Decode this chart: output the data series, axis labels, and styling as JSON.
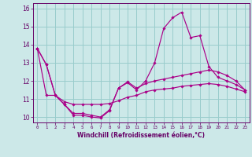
{
  "xlabel": "Windchill (Refroidissement éolien,°C)",
  "background_color": "#cce8e8",
  "grid_color": "#99cccc",
  "line_color": "#aa0088",
  "x_hours": [
    0,
    1,
    2,
    3,
    4,
    5,
    6,
    7,
    8,
    9,
    10,
    11,
    12,
    13,
    14,
    15,
    16,
    17,
    18,
    19,
    20,
    21,
    22,
    23
  ],
  "series": [
    [
      13.8,
      12.9,
      11.2,
      10.7,
      10.1,
      10.1,
      10.0,
      9.95,
      10.35,
      11.6,
      11.9,
      11.5,
      12.0,
      13.0,
      14.9,
      15.5,
      15.8,
      14.4,
      14.5,
      12.8,
      12.2,
      12.0,
      11.8,
      11.5
    ],
    [
      13.8,
      12.9,
      11.2,
      10.7,
      10.2,
      10.2,
      10.1,
      10.0,
      10.4,
      11.6,
      11.95,
      11.6,
      11.85,
      12.0,
      12.1,
      12.2,
      12.3,
      12.4,
      12.5,
      12.6,
      12.5,
      12.3,
      12.0,
      11.5
    ],
    [
      13.8,
      11.2,
      11.2,
      10.85,
      10.7,
      10.7,
      10.7,
      10.7,
      10.75,
      10.9,
      11.1,
      11.2,
      11.4,
      11.5,
      11.55,
      11.6,
      11.7,
      11.75,
      11.8,
      11.85,
      11.8,
      11.7,
      11.55,
      11.4
    ]
  ],
  "ylim": [
    9.7,
    16.3
  ],
  "yticks": [
    10,
    11,
    12,
    13,
    14,
    15,
    16
  ],
  "xlim": [
    -0.5,
    23.5
  ],
  "xticks": [
    0,
    1,
    2,
    3,
    4,
    5,
    6,
    7,
    8,
    9,
    10,
    11,
    12,
    13,
    14,
    15,
    16,
    17,
    18,
    19,
    20,
    21,
    22,
    23
  ]
}
